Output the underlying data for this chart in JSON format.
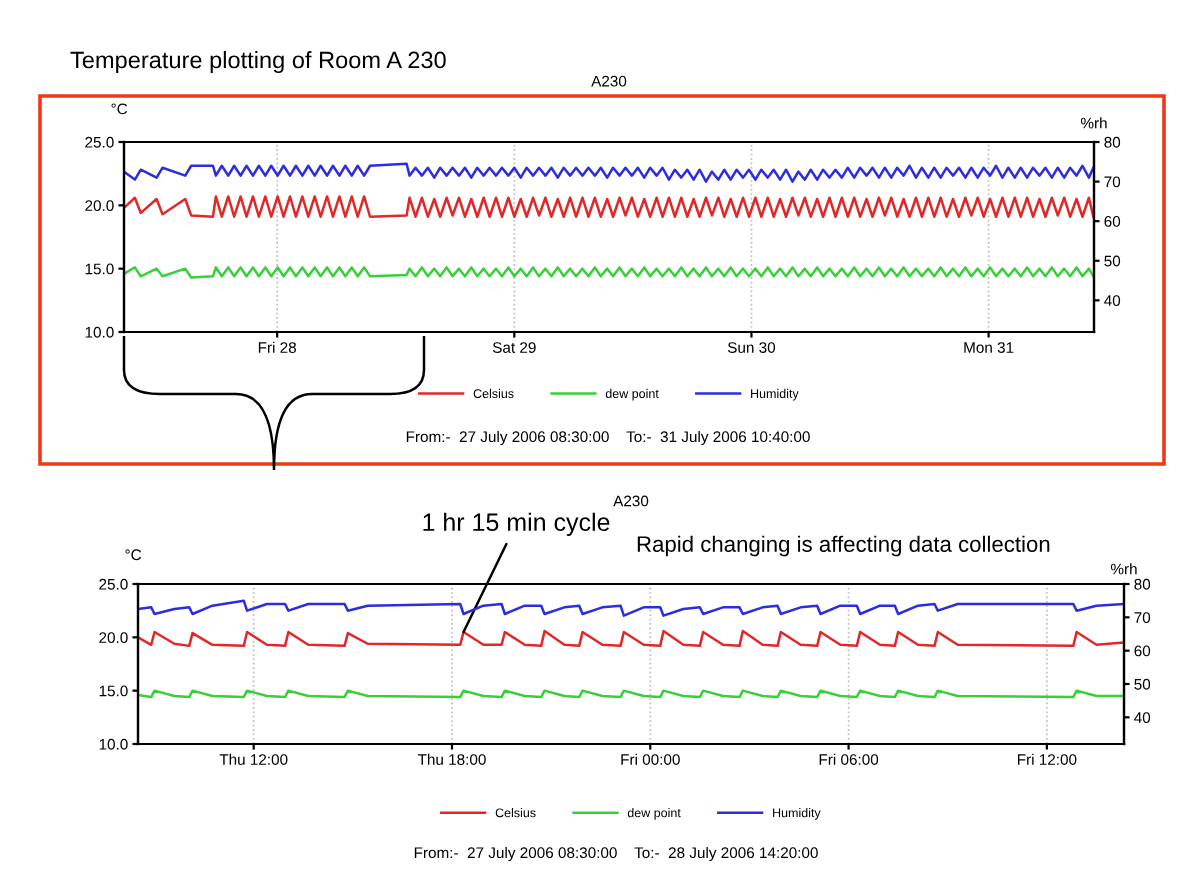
{
  "chart_data": [
    {
      "type": "line",
      "title": "A230",
      "ylabel": "°C",
      "y2label": "%rh",
      "annotations": [
        "Temperature plotting of Room A 230",
        "From:-  27 July 2006 08:30:00    To:-  31 July 2006 10:40:00"
      ],
      "xlim": [
        "2006-07-27T08:30",
        "2006-07-31T10:40"
      ],
      "xticks": [
        {
          "value": "2006-07-28T00:00",
          "label": "Fri 28"
        },
        {
          "value": "2006-07-29T00:00",
          "label": "Sat 29"
        },
        {
          "value": "2006-07-30T00:00",
          "label": "Sun 30"
        },
        {
          "value": "2006-07-31T00:00",
          "label": "Mon 31"
        }
      ],
      "ylim": [
        10,
        25
      ],
      "yticks": [
        {
          "value": 10,
          "label": "10.0"
        },
        {
          "value": 15,
          "label": "15.0"
        },
        {
          "value": 20,
          "label": "20.0"
        },
        {
          "value": 25,
          "label": "25.0"
        }
      ],
      "y2lim": [
        32,
        80
      ],
      "y2ticks": [
        40,
        50,
        60,
        70,
        80
      ],
      "grid": "x",
      "legend": "bottom",
      "x": [
        "2006-07-27T08:30",
        "2006-07-27T09:36",
        "2006-07-27T10:12",
        "2006-07-27T11:48",
        "2006-07-27T12:24",
        "2006-07-27T14:42",
        "2006-07-27T15:18",
        "2006-07-27T17:30",
        "2006-07-27T17:48",
        "2006-07-27T18:24",
        "2006-07-27T19:03",
        "2006-07-27T19:39",
        "2006-07-27T20:18",
        "2006-07-27T20:54",
        "2006-07-27T21:33",
        "2006-07-27T22:09",
        "2006-07-27T22:48",
        "2006-07-27T23:24",
        "2006-07-28T00:03",
        "2006-07-28T00:39",
        "2006-07-28T01:18",
        "2006-07-28T01:54",
        "2006-07-28T02:33",
        "2006-07-28T03:09",
        "2006-07-28T03:48",
        "2006-07-28T04:24",
        "2006-07-28T05:03",
        "2006-07-28T05:39",
        "2006-07-28T06:18",
        "2006-07-28T06:54",
        "2006-07-28T07:33",
        "2006-07-28T08:09",
        "2006-07-28T08:48",
        "2006-07-28T09:24",
        "2006-07-28T13:06",
        "2006-07-28T13:24",
        "2006-07-28T14:00",
        "2006-07-28T14:39",
        "2006-07-28T15:15",
        "2006-07-28T15:54",
        "2006-07-28T16:30",
        "2006-07-28T17:09",
        "2006-07-28T17:45",
        "2006-07-28T18:24",
        "2006-07-28T19:00",
        "2006-07-28T19:39",
        "2006-07-28T20:15",
        "2006-07-28T20:54",
        "2006-07-28T21:30",
        "2006-07-28T22:09",
        "2006-07-28T22:45",
        "2006-07-28T23:24",
        "2006-07-29T00:00",
        "2006-07-29T00:39",
        "2006-07-29T01:15",
        "2006-07-29T01:54",
        "2006-07-29T02:30",
        "2006-07-29T03:09",
        "2006-07-29T03:45",
        "2006-07-29T04:24",
        "2006-07-29T05:00",
        "2006-07-29T05:39",
        "2006-07-29T06:15",
        "2006-07-29T06:54",
        "2006-07-29T07:30",
        "2006-07-29T08:09",
        "2006-07-29T08:45",
        "2006-07-29T09:24",
        "2006-07-29T10:00",
        "2006-07-29T10:39",
        "2006-07-29T11:15",
        "2006-07-29T11:54",
        "2006-07-29T12:30",
        "2006-07-29T13:09",
        "2006-07-29T13:45",
        "2006-07-29T14:24",
        "2006-07-29T15:00",
        "2006-07-29T15:39",
        "2006-07-29T16:15",
        "2006-07-29T16:54",
        "2006-07-29T17:30",
        "2006-07-29T18:09",
        "2006-07-29T18:45",
        "2006-07-29T19:24",
        "2006-07-29T20:00",
        "2006-07-29T20:39",
        "2006-07-29T21:15",
        "2006-07-29T21:54",
        "2006-07-29T22:30",
        "2006-07-29T23:09",
        "2006-07-29T23:45",
        "2006-07-30T00:24",
        "2006-07-30T01:00",
        "2006-07-30T01:39",
        "2006-07-30T02:15",
        "2006-07-30T02:54",
        "2006-07-30T03:30",
        "2006-07-30T04:09",
        "2006-07-30T04:45",
        "2006-07-30T05:24",
        "2006-07-30T06:00",
        "2006-07-30T06:39",
        "2006-07-30T07:15",
        "2006-07-30T07:54",
        "2006-07-30T08:30",
        "2006-07-30T09:09",
        "2006-07-30T09:45",
        "2006-07-30T10:24",
        "2006-07-30T11:00",
        "2006-07-30T11:39",
        "2006-07-30T12:15",
        "2006-07-30T12:54",
        "2006-07-30T13:30",
        "2006-07-30T14:09",
        "2006-07-30T14:45",
        "2006-07-30T15:24",
        "2006-07-30T16:00",
        "2006-07-30T16:39",
        "2006-07-30T17:15",
        "2006-07-30T17:54",
        "2006-07-30T18:30",
        "2006-07-30T19:09",
        "2006-07-30T19:45",
        "2006-07-30T20:24",
        "2006-07-30T21:00",
        "2006-07-30T21:39",
        "2006-07-30T22:15",
        "2006-07-30T22:54",
        "2006-07-30T23:30",
        "2006-07-31T00:09",
        "2006-07-31T00:45",
        "2006-07-31T01:24",
        "2006-07-31T02:00",
        "2006-07-31T02:39",
        "2006-07-31T03:15",
        "2006-07-31T03:54",
        "2006-07-31T04:30",
        "2006-07-31T05:09",
        "2006-07-31T05:45",
        "2006-07-31T06:24",
        "2006-07-31T07:00",
        "2006-07-31T07:39",
        "2006-07-31T08:15",
        "2006-07-31T08:54",
        "2006-07-31T09:30",
        "2006-07-31T10:09",
        "2006-07-31T10:36"
      ],
      "series": [
        {
          "name": "Celsius",
          "color": "#e02828",
          "values": [
            19.8,
            20.6,
            19.4,
            20.5,
            19.3,
            20.5,
            19.2,
            19.1,
            20.7,
            19.1,
            20.7,
            19.1,
            20.7,
            19.1,
            20.7,
            19.1,
            20.7,
            19.1,
            20.7,
            19.1,
            20.7,
            19.1,
            20.7,
            19.1,
            20.7,
            19.1,
            20.7,
            19.1,
            20.7,
            19.1,
            20.7,
            19.1,
            20.7,
            19.1,
            19.2,
            20.6,
            19.1,
            20.6,
            19.1,
            20.5,
            19.1,
            20.6,
            19.2,
            20.6,
            19.1,
            20.5,
            19.1,
            20.6,
            19.1,
            20.6,
            19.1,
            20.6,
            19.1,
            20.5,
            19.1,
            20.6,
            19.2,
            20.6,
            19.1,
            20.5,
            19.1,
            20.6,
            19.1,
            20.6,
            19.1,
            20.6,
            19.1,
            20.5,
            19.1,
            20.6,
            19.2,
            20.6,
            19.1,
            20.5,
            19.1,
            20.6,
            19.1,
            20.6,
            19.1,
            20.6,
            19.1,
            20.5,
            19.1,
            20.6,
            19.2,
            20.6,
            19.1,
            20.5,
            19.1,
            20.6,
            19.1,
            20.6,
            19.1,
            20.6,
            19.1,
            20.5,
            19.1,
            20.6,
            19.2,
            20.6,
            19.1,
            20.5,
            19.1,
            20.6,
            19.1,
            20.6,
            19.1,
            20.6,
            19.1,
            20.5,
            19.1,
            20.6,
            19.2,
            20.6,
            19.1,
            20.5,
            19.1,
            20.6,
            19.1,
            20.6,
            19.1,
            20.6,
            19.1,
            20.5,
            19.1,
            20.6,
            19.2,
            20.6,
            19.1,
            20.5,
            19.1,
            20.6,
            19.1,
            20.6,
            19.1,
            20.6,
            19.1,
            20.5,
            19.1,
            20.6,
            19.2,
            20.6,
            19.1,
            20.5,
            19.1,
            20.6,
            19.1
          ]
        },
        {
          "name": "dew point",
          "color": "#38d038",
          "values": [
            14.6,
            15.1,
            14.4,
            15.0,
            14.4,
            15.0,
            14.3,
            14.4,
            15.1,
            14.4,
            15.1,
            14.4,
            15.1,
            14.4,
            15.1,
            14.4,
            15.1,
            14.4,
            15.1,
            14.4,
            15.1,
            14.4,
            15.1,
            14.4,
            15.1,
            14.4,
            15.1,
            14.4,
            15.1,
            14.4,
            15.1,
            14.4,
            15.1,
            14.4,
            14.5,
            15.0,
            14.4,
            15.1,
            14.4,
            15.0,
            14.4,
            15.1,
            14.4,
            15.0,
            14.4,
            15.1,
            14.4,
            15.0,
            14.4,
            15.0,
            14.4,
            15.1,
            14.4,
            15.0,
            14.4,
            15.1,
            14.4,
            15.0,
            14.4,
            15.1,
            14.4,
            15.0,
            14.4,
            15.0,
            14.4,
            15.1,
            14.4,
            15.0,
            14.4,
            15.1,
            14.4,
            15.0,
            14.4,
            15.1,
            14.4,
            15.0,
            14.4,
            15.0,
            14.4,
            15.1,
            14.4,
            15.0,
            14.4,
            15.1,
            14.4,
            15.0,
            14.4,
            15.1,
            14.4,
            15.0,
            14.4,
            15.0,
            14.4,
            15.1,
            14.4,
            15.0,
            14.4,
            15.1,
            14.4,
            15.0,
            14.4,
            15.1,
            14.4,
            15.0,
            14.4,
            15.0,
            14.4,
            15.1,
            14.4,
            15.0,
            14.4,
            15.1,
            14.4,
            15.0,
            14.4,
            15.1,
            14.4,
            15.0,
            14.4,
            15.0,
            14.4,
            15.1,
            14.4,
            15.0,
            14.4,
            15.1,
            14.4,
            15.0,
            14.4,
            15.1,
            14.4,
            15.0,
            14.4,
            15.0,
            14.4,
            15.1,
            14.4,
            15.0,
            14.4,
            15.1,
            14.4,
            15.0,
            14.4,
            15.1,
            14.4,
            15.0,
            14.4
          ]
        },
        {
          "name": "Humidity",
          "color": "#2c2ce0",
          "axis": "y2",
          "values": [
            72.5,
            70.5,
            73,
            71,
            73.5,
            71.5,
            74,
            74,
            71.5,
            74,
            71.5,
            74,
            71.5,
            74,
            71.5,
            74,
            71.5,
            74,
            71.5,
            74,
            71.5,
            74,
            71.5,
            74,
            71.5,
            74,
            71.5,
            74,
            71.5,
            74,
            71.5,
            74,
            71.5,
            74,
            74.5,
            71.5,
            73.5,
            71.5,
            73.5,
            71,
            73.5,
            71.5,
            73.5,
            71.5,
            73.5,
            71,
            73.5,
            71.5,
            73.5,
            71.5,
            73.5,
            71.5,
            73.5,
            71,
            73.5,
            71.5,
            73.5,
            71.5,
            73.5,
            71,
            73.5,
            71.5,
            73.5,
            71.5,
            73.5,
            71.5,
            73.5,
            71,
            73.5,
            71.5,
            73.5,
            71.5,
            73.5,
            71,
            73.5,
            71.5,
            73.5,
            70.5,
            73,
            71,
            73,
            70.5,
            73,
            70,
            72.5,
            70.5,
            73,
            70.5,
            73,
            71,
            73,
            70.5,
            73,
            71,
            73,
            70.5,
            73,
            70,
            72.5,
            70.5,
            73,
            70.5,
            73,
            71,
            73,
            71,
            73.5,
            71,
            73.5,
            71.5,
            73.5,
            71,
            73.5,
            71,
            73.5,
            71.5,
            74,
            71,
            73.5,
            71,
            73.5,
            71,
            73.5,
            71.5,
            73.5,
            71,
            73.5,
            71,
            73.5,
            71.5,
            74,
            71,
            73.5,
            71,
            73.5,
            71,
            73.5,
            71.5,
            73.5,
            71,
            73.5,
            71,
            73.5,
            71.5,
            74,
            71,
            73.5
          ]
        }
      ]
    },
    {
      "type": "line",
      "title": "A230",
      "ylabel": "°C",
      "y2label": "%rh",
      "annotations": [
        {
          "text": "1 hr 15 min cycle",
          "x": "2006-07-27T18:21",
          "y": 20.5
        },
        "Rapid changing is affecting data collection",
        "From:-  27 July 2006 08:30:00    To:-  28 July 2006 14:20:00"
      ],
      "xlim": [
        "2006-07-27T08:30",
        "2006-07-28T14:20"
      ],
      "xticks": [
        {
          "value": "2006-07-27T12:00",
          "label": "Thu 12:00"
        },
        {
          "value": "2006-07-27T18:00",
          "label": "Thu 18:00"
        },
        {
          "value": "2006-07-28T00:00",
          "label": "Fri 00:00"
        },
        {
          "value": "2006-07-28T06:00",
          "label": "Fri 06:00"
        },
        {
          "value": "2006-07-28T12:00",
          "label": "Fri 12:00"
        }
      ],
      "ylim": [
        10,
        25
      ],
      "yticks": [
        {
          "value": 10,
          "label": "10.0"
        },
        {
          "value": 15,
          "label": "15.0"
        },
        {
          "value": 20,
          "label": "20.0"
        },
        {
          "value": 25,
          "label": "25.0"
        }
      ],
      "y2lim": [
        32,
        80
      ],
      "y2ticks": [
        40,
        50,
        60,
        70,
        80
      ],
      "grid": "x",
      "legend": "bottom",
      "x": [
        "2006-07-27T08:30",
        "2006-07-27T08:54",
        "2006-07-27T09:00",
        "2006-07-27T09:36",
        "2006-07-27T10:03",
        "2006-07-27T10:09",
        "2006-07-27T10:45",
        "2006-07-27T11:42",
        "2006-07-27T11:48",
        "2006-07-27T12:24",
        "2006-07-27T12:57",
        "2006-07-27T13:03",
        "2006-07-27T13:39",
        "2006-07-27T14:45",
        "2006-07-27T14:51",
        "2006-07-27T15:27",
        "2006-07-27T18:15",
        "2006-07-27T18:21",
        "2006-07-27T18:57",
        "2006-07-27T19:30",
        "2006-07-27T19:36",
        "2006-07-27T20:12",
        "2006-07-27T20:42",
        "2006-07-27T20:48",
        "2006-07-27T21:24",
        "2006-07-27T21:51",
        "2006-07-27T21:57",
        "2006-07-27T22:33",
        "2006-07-27T23:06",
        "2006-07-27T23:12",
        "2006-07-27T23:48",
        "2006-07-28T00:18",
        "2006-07-28T00:24",
        "2006-07-28T01:00",
        "2006-07-28T01:30",
        "2006-07-28T01:36",
        "2006-07-28T02:12",
        "2006-07-28T02:42",
        "2006-07-28T02:48",
        "2006-07-28T03:24",
        "2006-07-28T03:51",
        "2006-07-28T03:57",
        "2006-07-28T04:33",
        "2006-07-28T05:03",
        "2006-07-28T05:09",
        "2006-07-28T05:45",
        "2006-07-28T06:15",
        "2006-07-28T06:21",
        "2006-07-28T06:57",
        "2006-07-28T07:24",
        "2006-07-28T07:30",
        "2006-07-28T08:06",
        "2006-07-28T08:36",
        "2006-07-28T08:42",
        "2006-07-28T09:18",
        "2006-07-28T12:48",
        "2006-07-28T12:54",
        "2006-07-28T13:30",
        "2006-07-28T14:18"
      ],
      "series": [
        {
          "name": "Celsius",
          "color": "#e02828",
          "values": [
            20.0,
            19.3,
            20.5,
            19.4,
            19.2,
            20.4,
            19.3,
            19.2,
            20.5,
            19.3,
            19.2,
            20.5,
            19.3,
            19.2,
            20.4,
            19.4,
            19.3,
            20.5,
            19.3,
            19.3,
            20.5,
            19.3,
            19.2,
            20.6,
            19.3,
            19.2,
            20.5,
            19.3,
            19.2,
            20.5,
            19.3,
            19.2,
            20.6,
            19.3,
            19.2,
            20.5,
            19.3,
            19.2,
            20.6,
            19.3,
            19.2,
            20.5,
            19.3,
            19.2,
            20.5,
            19.3,
            19.2,
            20.5,
            19.3,
            19.2,
            20.5,
            19.3,
            19.2,
            20.5,
            19.3,
            19.2,
            20.5,
            19.3,
            19.5
          ]
        },
        {
          "name": "dew point",
          "color": "#38d038",
          "values": [
            14.6,
            14.4,
            15.0,
            14.5,
            14.4,
            15.0,
            14.5,
            14.4,
            15.0,
            14.5,
            14.4,
            15.0,
            14.5,
            14.4,
            15.0,
            14.5,
            14.4,
            15.0,
            14.5,
            14.4,
            15.0,
            14.5,
            14.4,
            15.0,
            14.5,
            14.4,
            15.0,
            14.5,
            14.4,
            15.0,
            14.5,
            14.4,
            15.0,
            14.5,
            14.4,
            15.0,
            14.5,
            14.4,
            15.0,
            14.5,
            14.4,
            15.0,
            14.5,
            14.4,
            15.0,
            14.5,
            14.4,
            15.0,
            14.5,
            14.4,
            15.0,
            14.5,
            14.4,
            15.0,
            14.5,
            14.4,
            15.0,
            14.5,
            14.5
          ]
        },
        {
          "name": "Humidity",
          "color": "#2c2ce0",
          "axis": "y2",
          "values": [
            72.5,
            73,
            71,
            72.5,
            73,
            71,
            73.5,
            75,
            72,
            74,
            74,
            72,
            74,
            74,
            72,
            73.5,
            74,
            71,
            73.5,
            74,
            71,
            73.5,
            73.5,
            71,
            73,
            73.5,
            71,
            73,
            73.5,
            70.5,
            73,
            73,
            70.5,
            72.5,
            73,
            71,
            73,
            73,
            71,
            73,
            73.5,
            71,
            73,
            73.5,
            71,
            73.5,
            73.5,
            71,
            73.5,
            73.5,
            71,
            73.5,
            74,
            72,
            74,
            74,
            72,
            73.5,
            74
          ]
        }
      ]
    }
  ]
}
